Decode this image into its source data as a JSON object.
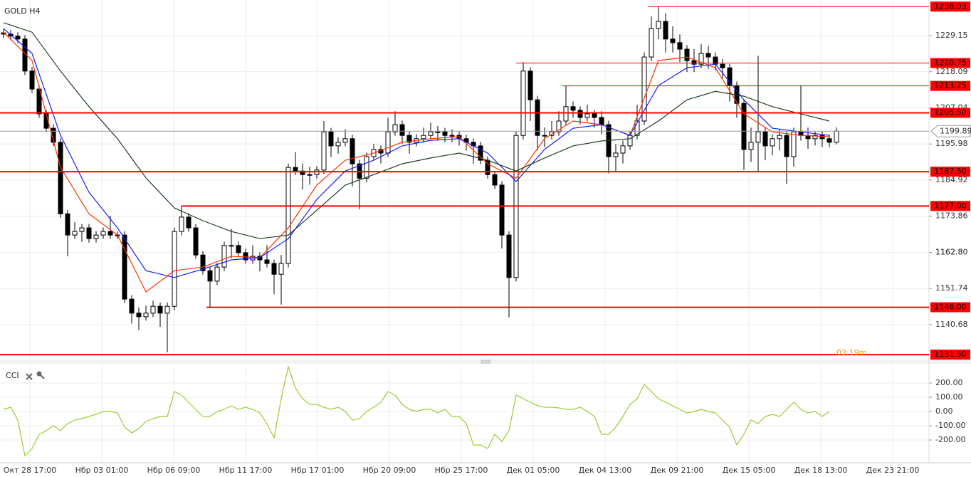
{
  "chart_data": [
    {
      "type": "candlestick",
      "title": "GOLD H4",
      "xlim": [
        -0.5,
        130
      ],
      "ylim": [
        1130.0,
        1240.05
      ],
      "grid": true,
      "up_color": "#ffffff",
      "down_color": "#000000",
      "xticks": [
        {
          "value": 3.7,
          "label": "Окт 28 17:00"
        },
        {
          "value": 13.8,
          "label": "Нбр 03 01:00"
        },
        {
          "value": 23.9,
          "label": "Нбр 06 09:00"
        },
        {
          "value": 34.0,
          "label": "Нбр 11 17:00"
        },
        {
          "value": 44.1,
          "label": "Нбр 17 01:00"
        },
        {
          "value": 54.2,
          "label": "Нбр 20 09:00"
        },
        {
          "value": 64.3,
          "label": "Нбр 25 17:00"
        },
        {
          "value": 74.4,
          "label": "Дек 01 05:00"
        },
        {
          "value": 84.5,
          "label": "Дек 04 13:00"
        },
        {
          "value": 94.6,
          "label": "Дек 09 21:00"
        },
        {
          "value": 104.7,
          "label": "Дек 15 05:00"
        },
        {
          "value": 114.8,
          "label": "Дек 18 13:00"
        },
        {
          "value": 124.9,
          "label": "Дек 23 21:00"
        }
      ],
      "yticks": [
        1229.15,
        1218.09,
        1207.04,
        1195.98,
        1184.92,
        1173.86,
        1162.8,
        {
          "value": 1162.8,
          "label": "1162.80"
        },
        1151.74,
        1140.68
      ],
      "open": [
        1230.0,
        1229.6,
        1229.0,
        1228.1,
        1218.3,
        1212.8,
        1205.2,
        1200.8,
        1196.5,
        1174.6,
        1168.1,
        1169.2,
        1170.3,
        1167.0,
        1168.1,
        1169.2,
        1168.1,
        1168.1,
        1148.5,
        1144.2,
        1143.1,
        1144.2,
        1146.3,
        1144.2,
        1146.3,
        1169.2,
        1173.6,
        1170.3,
        1162.0,
        1157.2,
        1154.0,
        1158.3,
        1164.9,
        1164.9,
        1162.7,
        1160.5,
        1161.6,
        1160.5,
        1159.4,
        1156.1,
        1159.4,
        1188.8,
        1187.7,
        1186.6,
        1186.6,
        1188.0,
        1199.7,
        1195.4,
        1196.5,
        1197.6,
        1189.9,
        1185.5,
        1192.1,
        1194.3,
        1193.2,
        1199.7,
        1201.9,
        1198.6,
        1196.5,
        1197.6,
        1198.6,
        1199.7,
        1199.7,
        1198.6,
        1198.6,
        1197.6,
        1196.5,
        1195.4,
        1191.0,
        1186.6,
        1183.4,
        1168.1,
        1155.1,
        1198.6,
        1218.3,
        1209.5,
        1198.6,
        1198.6,
        1199.7,
        1203.0,
        1207.4,
        1206.3,
        1204.1,
        1205.2,
        1204.1,
        1201.9,
        1192.1,
        1193.2,
        1195.4,
        1198.6,
        1203.0,
        1222.6,
        1231.3,
        1233.5,
        1228.1,
        1227.0,
        1225.0,
        1221.5,
        1220.4,
        1223.7,
        1222.6,
        1220.4,
        1219.3,
        1213.9,
        1208.4,
        1194.3,
        1196.5,
        1199.7,
        1195.4,
        1197.6,
        1198.6,
        1192.1,
        1199.7,
        1198.6,
        1197.6,
        1198.6,
        1197.6,
        1196.5
      ],
      "high": [
        1231.2,
        1230.8,
        1230.2,
        1229.3,
        1219.5,
        1214.0,
        1206.4,
        1202.0,
        1197.7,
        1175.8,
        1172.0,
        1171.5,
        1171.5,
        1169.3,
        1170.4,
        1174.0,
        1169.3,
        1169.3,
        1149.7,
        1146.0,
        1146.5,
        1148.0,
        1147.5,
        1147.5,
        1170.4,
        1177.0,
        1174.8,
        1171.5,
        1163.2,
        1158.4,
        1159.5,
        1166.1,
        1170.0,
        1166.1,
        1163.9,
        1165.0,
        1162.8,
        1165.0,
        1160.6,
        1162.0,
        1190.0,
        1193.5,
        1190.0,
        1189.0,
        1189.2,
        1203.0,
        1200.9,
        1198.0,
        1200.5,
        1198.8,
        1191.1,
        1193.3,
        1196.0,
        1195.5,
        1204.0,
        1206.0,
        1203.1,
        1199.8,
        1199.0,
        1201.0,
        1202.5,
        1201.5,
        1200.9,
        1200.5,
        1199.8,
        1198.8,
        1197.7,
        1196.6,
        1192.2,
        1187.8,
        1184.6,
        1169.3,
        1199.8,
        1221.0,
        1219.5,
        1210.7,
        1201.0,
        1203.0,
        1206.0,
        1213.7,
        1209.0,
        1207.5,
        1208.0,
        1206.4,
        1206.0,
        1203.1,
        1196.0,
        1197.0,
        1200.0,
        1208.0,
        1224.0,
        1235.0,
        1238.0,
        1236.0,
        1232.0,
        1229.5,
        1226.2,
        1225.0,
        1226.5,
        1226.0,
        1224.0,
        1222.0,
        1220.5,
        1215.1,
        1209.6,
        1201.0,
        1223.0,
        1201.0,
        1199.0,
        1200.5,
        1199.8,
        1201.0,
        1214.0,
        1201.0,
        1199.8,
        1199.8,
        1198.8,
        1201.1
      ],
      "low": [
        1228.4,
        1227.8,
        1226.9,
        1217.1,
        1211.6,
        1204.0,
        1199.6,
        1195.3,
        1173.4,
        1161.6,
        1166.9,
        1166.0,
        1165.8,
        1165.8,
        1166.9,
        1166.9,
        1166.9,
        1147.3,
        1141.0,
        1139.0,
        1141.9,
        1143.0,
        1140.0,
        1132.2,
        1145.1,
        1168.0,
        1169.1,
        1160.8,
        1156.0,
        1146.0,
        1152.8,
        1157.1,
        1161.0,
        1161.5,
        1159.3,
        1159.3,
        1157.0,
        1158.2,
        1150.0,
        1146.8,
        1158.2,
        1186.5,
        1182.0,
        1183.5,
        1185.4,
        1186.8,
        1192.0,
        1193.0,
        1195.3,
        1183.0,
        1176.0,
        1184.3,
        1190.9,
        1190.0,
        1192.0,
        1198.5,
        1196.0,
        1193.0,
        1195.3,
        1196.4,
        1197.4,
        1197.0,
        1196.5,
        1196.5,
        1195.5,
        1194.0,
        1190.0,
        1189.8,
        1185.4,
        1182.2,
        1164.0,
        1142.9,
        1153.9,
        1197.4,
        1203.0,
        1194.0,
        1195.0,
        1197.4,
        1198.5,
        1201.8,
        1204.0,
        1202.0,
        1202.9,
        1201.0,
        1199.0,
        1187.0,
        1187.5,
        1190.0,
        1194.2,
        1197.4,
        1201.8,
        1221.4,
        1228.0,
        1224.0,
        1224.0,
        1221.0,
        1218.0,
        1218.0,
        1219.2,
        1219.0,
        1218.5,
        1216.0,
        1209.0,
        1204.0,
        1188.0,
        1190.5,
        1187.5,
        1191.0,
        1192.5,
        1194.0,
        1183.8,
        1189.0,
        1197.0,
        1194.5,
        1195.5,
        1195.0,
        1195.0,
        1195.8
      ],
      "close": [
        1229.6,
        1229.0,
        1228.1,
        1218.3,
        1212.8,
        1205.2,
        1200.8,
        1196.5,
        1174.6,
        1168.1,
        1169.2,
        1170.3,
        1167.0,
        1168.1,
        1169.2,
        1168.1,
        1168.1,
        1148.5,
        1144.2,
        1143.1,
        1144.2,
        1146.3,
        1144.2,
        1146.3,
        1169.2,
        1173.6,
        1170.3,
        1162.0,
        1157.2,
        1154.0,
        1158.3,
        1164.9,
        1164.9,
        1162.7,
        1160.5,
        1161.6,
        1160.5,
        1159.4,
        1156.1,
        1159.4,
        1188.8,
        1187.7,
        1186.6,
        1186.6,
        1188.0,
        1199.7,
        1195.4,
        1196.5,
        1197.6,
        1189.9,
        1185.5,
        1192.1,
        1194.3,
        1193.2,
        1199.7,
        1201.9,
        1198.6,
        1196.5,
        1197.6,
        1198.6,
        1199.7,
        1199.7,
        1198.6,
        1198.6,
        1197.6,
        1196.5,
        1195.4,
        1191.0,
        1186.6,
        1183.4,
        1168.1,
        1155.1,
        1198.6,
        1218.3,
        1209.5,
        1198.6,
        1198.6,
        1199.7,
        1203.0,
        1207.4,
        1206.3,
        1204.1,
        1205.2,
        1204.1,
        1201.9,
        1192.1,
        1193.2,
        1195.4,
        1198.6,
        1203.0,
        1222.6,
        1231.3,
        1233.5,
        1228.1,
        1227.0,
        1225.0,
        1221.5,
        1220.4,
        1223.7,
        1222.6,
        1220.4,
        1219.3,
        1213.9,
        1208.4,
        1194.3,
        1196.5,
        1199.7,
        1195.4,
        1197.6,
        1198.6,
        1192.1,
        1199.7,
        1198.6,
        1197.6,
        1198.6,
        1197.6,
        1196.5,
        1199.9
      ],
      "series_x": [
        0,
        4,
        8,
        12,
        16,
        20,
        24,
        28,
        32,
        36,
        40,
        44,
        48,
        52,
        56,
        60,
        64,
        68,
        72,
        76,
        80,
        84,
        88,
        92,
        96,
        100,
        104,
        108,
        112,
        116
      ],
      "series": [
        {
          "color": "#ff3300",
          "values": [
            1230.2,
            1221.5,
            1188.8,
            1174.6,
            1168.1,
            1150.7,
            1157.2,
            1158.3,
            1161.6,
            1161.2,
            1170.3,
            1183.4,
            1191.0,
            1193.2,
            1196.5,
            1197.6,
            1198.2,
            1189.9,
            1185.5,
            1197.6,
            1203.0,
            1201.9,
            1198.6,
            1221.5,
            1222.6,
            1219.3,
            1205.2,
            1199.7,
            1198.6,
            1198.2
          ]
        },
        {
          "color": "#1a1aff",
          "values": [
            1231.3,
            1223.7,
            1198.6,
            1181.2,
            1170.3,
            1157.2,
            1155.1,
            1157.7,
            1160.5,
            1161.2,
            1167.0,
            1179.0,
            1187.7,
            1191.0,
            1195.4,
            1197.1,
            1197.6,
            1193.2,
            1184.5,
            1194.3,
            1200.8,
            1201.9,
            1198.6,
            1213.9,
            1219.3,
            1220.4,
            1209.5,
            1200.8,
            1199.7,
            1198.6
          ]
        },
        {
          "color": "#1f3d1f",
          "values": [
            1233.1,
            1230.2,
            1218.3,
            1207.4,
            1197.6,
            1185.6,
            1176.4,
            1172.5,
            1169.2,
            1167.0,
            1168.1,
            1175.7,
            1183.4,
            1186.6,
            1189.9,
            1191.7,
            1193.2,
            1191.0,
            1187.7,
            1191.7,
            1195.4,
            1196.9,
            1197.6,
            1203.0,
            1209.5,
            1212.1,
            1210.6,
            1207.4,
            1205.2,
            1203.0
          ]
        }
      ],
      "levels": [
        {
          "value": 1238.03,
          "label": "1238.03",
          "start": 90.5,
          "style": "thin"
        },
        {
          "value": 1220.75,
          "label": "1220.75",
          "start": 72,
          "style": "thin"
        },
        {
          "value": 1213.75,
          "label": "1213.75",
          "start": 78.5,
          "style": "thin"
        },
        {
          "value": 1205.5,
          "label": "1205.50",
          "start": -0.5,
          "style": "thick"
        },
        {
          "value": 1187.5,
          "label": "1187.50",
          "start": -0.5,
          "style": "thick"
        },
        {
          "value": 1177,
          "label": "1177.00",
          "start": 25,
          "style": "thick"
        },
        {
          "value": 1146,
          "label": "1146.00",
          "start": 28.5,
          "style": "thick"
        },
        {
          "value": 1131.5,
          "label": "1131.50",
          "start": -0.5,
          "style": "thick"
        }
      ],
      "level_color": "#ff0000",
      "current_price": 1199.89,
      "countdown": "03:19m"
    },
    {
      "type": "line",
      "title": "CCI",
      "color": "#9acd32",
      "xlim": [
        -0.5,
        130
      ],
      "ylim": [
        -360,
        330
      ],
      "yticks": [
        {
          "value": 200,
          "label": "200.00"
        },
        {
          "value": 100,
          "label": "100.00"
        },
        {
          "value": 0,
          "label": "0.00"
        },
        {
          "value": -100,
          "label": "-100.00"
        },
        {
          "value": -200,
          "label": "-200.00"
        }
      ],
      "values": [
        15,
        30,
        -60,
        -310,
        -260,
        -160,
        -135,
        -100,
        -135,
        -85,
        -60,
        -50,
        -35,
        -20,
        0,
        0,
        -10,
        -110,
        -150,
        -120,
        -70,
        -50,
        -35,
        -35,
        140,
        115,
        65,
        15,
        -35,
        -35,
        0,
        15,
        40,
        15,
        30,
        15,
        -10,
        -85,
        -185,
        90,
        315,
        165,
        90,
        50,
        50,
        30,
        15,
        30,
        0,
        -60,
        -50,
        0,
        30,
        65,
        140,
        115,
        50,
        15,
        0,
        15,
        15,
        -10,
        15,
        -35,
        -35,
        -85,
        -235,
        -235,
        -260,
        -160,
        -210,
        -135,
        115,
        90,
        65,
        40,
        30,
        30,
        25,
        15,
        15,
        30,
        0,
        -35,
        -160,
        -160,
        -110,
        -35,
        50,
        90,
        190,
        140,
        90,
        65,
        40,
        15,
        -10,
        0,
        15,
        0,
        -10,
        -60,
        -110,
        -235,
        -160,
        -60,
        -85,
        -35,
        -20,
        -35,
        15,
        65,
        15,
        -10,
        0,
        -35,
        0
      ]
    }
  ]
}
